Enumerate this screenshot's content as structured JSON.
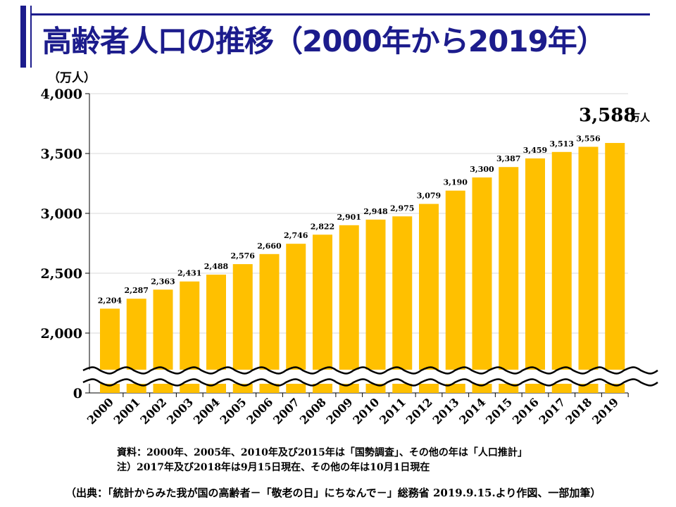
{
  "title": "高齢者人口の推移（2000年から2019年）",
  "colors": {
    "title": "#1c1c8c",
    "bar": "#ffc000",
    "axis": "#000000",
    "grid": "#d9d9d9"
  },
  "chart_data": {
    "type": "bar",
    "ylabel": "（万人）",
    "ylim": [
      0,
      4000
    ],
    "axis_break": "between 0 and 2,000",
    "yticks": [
      "0",
      "2,000",
      "2,500",
      "3,000",
      "3,500",
      "4,000"
    ],
    "grid": true,
    "categories": [
      "2000",
      "2001",
      "2002",
      "2003",
      "2004",
      "2005",
      "2006",
      "2007",
      "2008",
      "2009",
      "2010",
      "2011",
      "2012",
      "2013",
      "2014",
      "2015",
      "2016",
      "2017",
      "2018",
      "2019"
    ],
    "values": [
      2204,
      2287,
      2363,
      2431,
      2488,
      2576,
      2660,
      2746,
      2822,
      2901,
      2948,
      2975,
      3079,
      3190,
      3300,
      3387,
      3459,
      3513,
      3556,
      3588
    ],
    "value_labels": [
      "2,204",
      "2,287",
      "2,363",
      "2,431",
      "2,488",
      "2,576",
      "2,660",
      "2,746",
      "2,822",
      "2,901",
      "2,948",
      "2,975",
      "3,079",
      "3,190",
      "3,300",
      "3,387",
      "3,459",
      "3,513",
      "3,556",
      "3,588"
    ],
    "highlight_label": {
      "value": "3,588",
      "unit": "万人"
    }
  },
  "notes": {
    "line1": "資料：2000年、2005年、2010年及び2015年は「国勢調査」、その他の年は「人口推計」",
    "line2": "注）2017年及び2018年は9月15日現在、その他の年は10月1日現在",
    "source": "（出典：「統計からみた我が国の高齢者－「敬老の日」にちなんで－」総務省 2019.9.15.より作図、一部加筆）"
  }
}
